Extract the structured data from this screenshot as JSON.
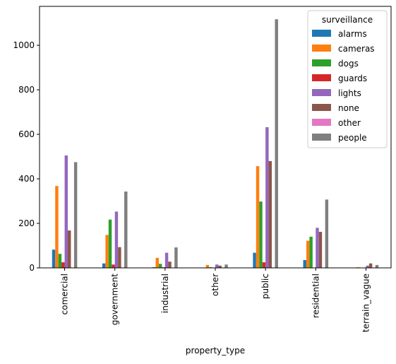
{
  "chart_data": {
    "type": "bar",
    "xlabel": "property_type",
    "ylabel": "",
    "categories": [
      "comercial",
      "government",
      "industrial",
      "other",
      "public",
      "residential",
      "terrain_vague"
    ],
    "ylim": [
      0,
      1175
    ],
    "yticks": [
      0,
      200,
      400,
      600,
      800,
      1000
    ],
    "legend": {
      "title": "surveillance",
      "placement": "top-right"
    },
    "grid": false,
    "series": [
      {
        "name": "alarms",
        "color": "#1f77b4",
        "values": [
          82,
          20,
          3,
          0,
          68,
          35,
          0
        ]
      },
      {
        "name": "cameras",
        "color": "#ff7f0e",
        "values": [
          368,
          148,
          45,
          13,
          457,
          122,
          3
        ]
      },
      {
        "name": "dogs",
        "color": "#2ca02c",
        "values": [
          63,
          217,
          18,
          3,
          298,
          140,
          0
        ]
      },
      {
        "name": "guards",
        "color": "#d62728",
        "values": [
          25,
          15,
          3,
          0,
          25,
          0,
          0
        ]
      },
      {
        "name": "lights",
        "color": "#9467bd",
        "values": [
          505,
          253,
          68,
          15,
          632,
          180,
          10
        ]
      },
      {
        "name": "none",
        "color": "#8c564b",
        "values": [
          168,
          93,
          28,
          10,
          480,
          162,
          20
        ]
      },
      {
        "name": "other",
        "color": "#e377c2",
        "values": [
          0,
          0,
          0,
          0,
          0,
          0,
          0
        ]
      },
      {
        "name": "people",
        "color": "#7f7f7f",
        "values": [
          475,
          343,
          92,
          15,
          1117,
          307,
          13
        ]
      }
    ]
  }
}
